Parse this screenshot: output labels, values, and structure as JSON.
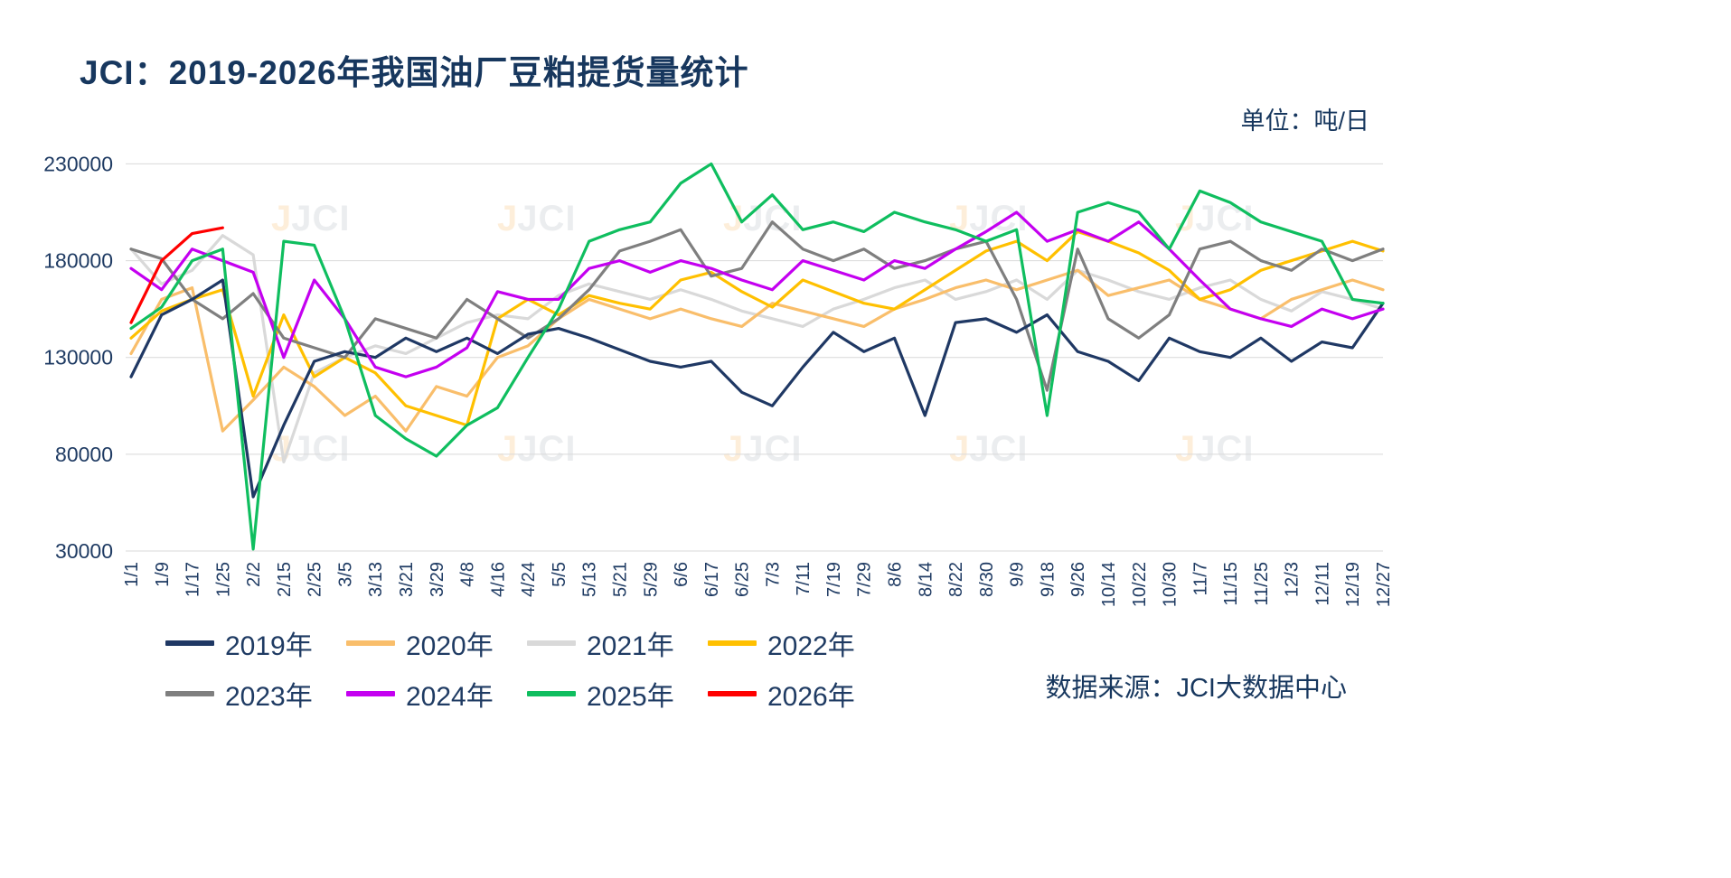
{
  "header": {
    "title": "JCI：2019-2026年我国油厂豆粕提货量统计",
    "unit_label": "单位：吨/日"
  },
  "footer": {
    "source": "数据来源：JCI大数据中心"
  },
  "watermark": {
    "accent": "J",
    "text": "JCI"
  },
  "chart_data": {
    "type": "line",
    "title": "JCI：2019-2026年我国油厂豆粕提货量统计",
    "unit": "吨/日",
    "xlabel": "",
    "ylabel": "",
    "ylim": [
      30000,
      240000
    ],
    "yticks": [
      30000,
      80000,
      130000,
      180000,
      230000
    ],
    "grid": "horizontal",
    "legend_position": "bottom",
    "categories": [
      "1/1",
      "1/9",
      "1/17",
      "1/25",
      "2/2",
      "2/15",
      "2/25",
      "3/5",
      "3/13",
      "3/21",
      "3/29",
      "4/8",
      "4/16",
      "4/24",
      "5/5",
      "5/13",
      "5/21",
      "5/29",
      "6/6",
      "6/17",
      "6/25",
      "7/3",
      "7/11",
      "7/19",
      "7/29",
      "8/6",
      "8/14",
      "8/22",
      "8/30",
      "9/9",
      "9/18",
      "9/26",
      "10/14",
      "10/22",
      "10/30",
      "11/7",
      "11/15",
      "11/25",
      "12/3",
      "12/11",
      "12/19",
      "12/27"
    ],
    "series": [
      {
        "name": "2019年",
        "color": "#1F3864",
        "values": [
          120000,
          152000,
          160000,
          170000,
          58000,
          95000,
          128000,
          133000,
          130000,
          140000,
          133000,
          140000,
          132000,
          142000,
          145000,
          140000,
          134000,
          128000,
          125000,
          128000,
          112000,
          105000,
          125000,
          143000,
          133000,
          140000,
          100000,
          148000,
          150000,
          143000,
          152000,
          133000,
          128000,
          118000,
          140000,
          133000,
          130000,
          140000,
          128000,
          138000,
          135000,
          158000
        ]
      },
      {
        "name": "2020年",
        "color": "#F9BE6B",
        "values": [
          132000,
          160000,
          166000,
          92000,
          108000,
          125000,
          115000,
          100000,
          110000,
          92000,
          115000,
          110000,
          130000,
          136000,
          150000,
          160000,
          155000,
          150000,
          155000,
          150000,
          146000,
          158000,
          154000,
          150000,
          146000,
          155000,
          160000,
          166000,
          170000,
          165000,
          170000,
          175000,
          162000,
          166000,
          170000,
          160000,
          155000,
          150000,
          160000,
          165000,
          170000,
          165000
        ]
      },
      {
        "name": "2021年",
        "color": "#D9D9D9",
        "values": [
          186000,
          168000,
          175000,
          193000,
          183000,
          76000,
          122000,
          130000,
          136000,
          132000,
          140000,
          148000,
          152000,
          150000,
          162000,
          168000,
          164000,
          160000,
          165000,
          160000,
          154000,
          150000,
          146000,
          155000,
          160000,
          166000,
          170000,
          160000,
          164000,
          170000,
          160000,
          175000,
          170000,
          164000,
          160000,
          166000,
          170000,
          160000,
          154000,
          164000,
          160000,
          155000
        ]
      },
      {
        "name": "2022年",
        "color": "#FFC000",
        "values": [
          140000,
          154000,
          160000,
          165000,
          110000,
          152000,
          120000,
          130000,
          122000,
          105000,
          100000,
          95000,
          150000,
          160000,
          152000,
          162000,
          158000,
          155000,
          170000,
          174000,
          164000,
          156000,
          170000,
          164000,
          158000,
          155000,
          165000,
          175000,
          185000,
          190000,
          180000,
          195000,
          190000,
          184000,
          175000,
          160000,
          165000,
          175000,
          180000,
          185000,
          190000,
          185000
        ]
      },
      {
        "name": "2023年",
        "color": "#7F7F7F",
        "values": [
          186000,
          181000,
          160000,
          150000,
          163000,
          140000,
          135000,
          130000,
          150000,
          145000,
          140000,
          160000,
          150000,
          140000,
          150000,
          165000,
          185000,
          190000,
          196000,
          172000,
          176000,
          200000,
          186000,
          180000,
          186000,
          176000,
          180000,
          186000,
          190000,
          160000,
          113000,
          186000,
          150000,
          140000,
          152000,
          186000,
          190000,
          180000,
          175000,
          186000,
          180000,
          186000
        ]
      },
      {
        "name": "2024年",
        "color": "#C400F0",
        "values": [
          176000,
          165000,
          186000,
          180000,
          174000,
          130000,
          170000,
          150000,
          125000,
          120000,
          125000,
          135000,
          164000,
          160000,
          160000,
          176000,
          180000,
          174000,
          180000,
          176000,
          170000,
          165000,
          180000,
          175000,
          170000,
          180000,
          176000,
          186000,
          195000,
          205000,
          190000,
          196000,
          190000,
          200000,
          186000,
          170000,
          155000,
          150000,
          146000,
          155000,
          150000,
          155000
        ]
      },
      {
        "name": "2025年",
        "color": "#0FBE5F",
        "values": [
          145000,
          156000,
          180000,
          186000,
          31000,
          190000,
          188000,
          150000,
          100000,
          88000,
          79000,
          95000,
          104000,
          130000,
          155000,
          190000,
          196000,
          200000,
          220000,
          230000,
          200000,
          214000,
          196000,
          200000,
          195000,
          205000,
          200000,
          196000,
          190000,
          196000,
          100000,
          205000,
          210000,
          205000,
          186000,
          216000,
          210000,
          200000,
          195000,
          190000,
          160000,
          158000
        ]
      },
      {
        "name": "2026年",
        "color": "#FF0000",
        "values": [
          148000,
          180000,
          194000,
          197000,
          null,
          null,
          null,
          null,
          null,
          null,
          null,
          null,
          null,
          null,
          null,
          null,
          null,
          null,
          null,
          null,
          null,
          null,
          null,
          null,
          null,
          null,
          null,
          null,
          null,
          null,
          null,
          null,
          null,
          null,
          null,
          null,
          null,
          null,
          null,
          null,
          null,
          null
        ]
      }
    ]
  }
}
